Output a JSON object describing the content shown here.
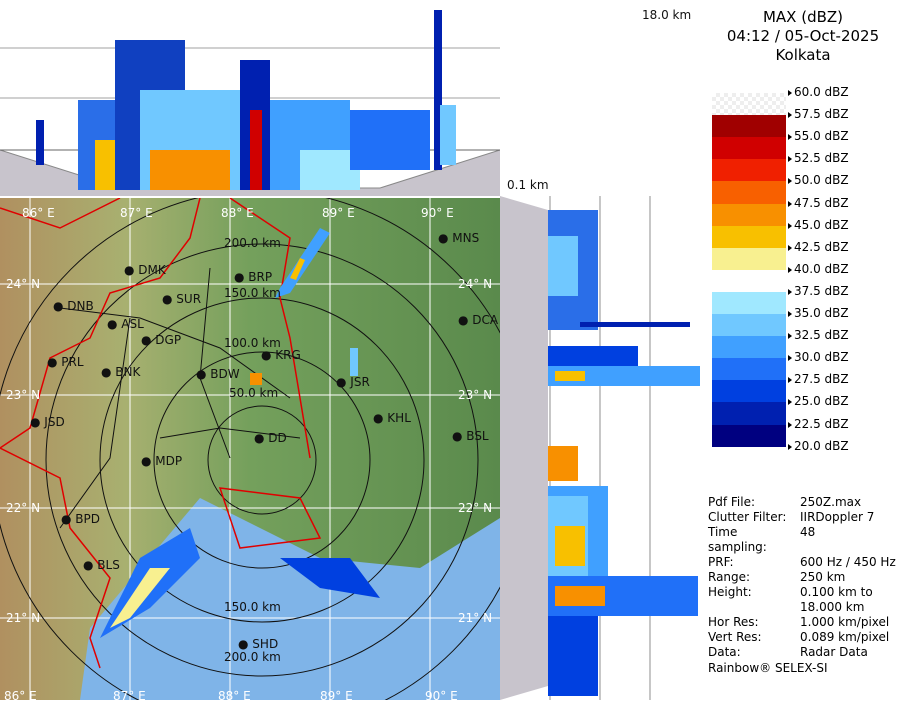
{
  "header": {
    "title": "MAX (dBZ)",
    "datetime": "04:12 / 05-Oct-2025",
    "station": "Kolkata"
  },
  "top_panel": {
    "height_top": "18.0 km",
    "height_bottom": "0.1 km"
  },
  "legend": {
    "labels": [
      "60.0 dBZ",
      "57.5 dBZ",
      "55.0 dBZ",
      "52.5 dBZ",
      "50.0 dBZ",
      "47.5 dBZ",
      "45.0 dBZ",
      "42.5 dBZ",
      "40.0 dBZ",
      "37.5 dBZ",
      "35.0 dBZ",
      "32.5 dBZ",
      "30.0 dBZ",
      "27.5 dBZ",
      "25.0 dBZ",
      "22.5 dBZ",
      "20.0 dBZ"
    ],
    "colors": [
      "#f4f4f4",
      "#a00000",
      "#d00000",
      "#f02000",
      "#f86000",
      "#f89000",
      "#f8c000",
      "#f8f090",
      "#ffffff",
      "#a0e8ff",
      "#70c8ff",
      "#40a0ff",
      "#2070f8",
      "#0040e0",
      "#0020b0",
      "#000080"
    ]
  },
  "info": [
    {
      "key": "Pdf File:",
      "value": "250Z.max"
    },
    {
      "key": "Clutter Filter:",
      "value": "IIRDoppler 7"
    },
    {
      "key": "Time sampling:",
      "value": "48"
    },
    {
      "key": "PRF:",
      "value": "600 Hz / 450 Hz"
    },
    {
      "key": "Range:",
      "value": "250 km"
    },
    {
      "key": "Height:",
      "value": "0.100 km to"
    },
    {
      "key": "",
      "value": "18.000 km"
    },
    {
      "key": "Hor Res:",
      "value": "1.000 km/pixel"
    },
    {
      "key": "Vert Res:",
      "value": "0.089 km/pixel"
    },
    {
      "key": "Data:",
      "value": "Radar Data"
    }
  ],
  "credit": "Rainbow® SELEX-SI",
  "map": {
    "lon_labels": [
      "86° E",
      "87° E",
      "88° E",
      "89° E",
      "90° E"
    ],
    "lat_labels": [
      "24° N",
      "23° N",
      "22° N",
      "21° N"
    ],
    "range_labels": [
      "50.0 km",
      "100.0 km",
      "150.0 km",
      "200.0 km"
    ],
    "range_labels_south": [
      "150.0 km",
      "200.0 km"
    ],
    "cities": [
      {
        "name": "MNS"
      },
      {
        "name": "DMK"
      },
      {
        "name": "BRP"
      },
      {
        "name": "SUR"
      },
      {
        "name": "DNB"
      },
      {
        "name": "ASL"
      },
      {
        "name": "DGP"
      },
      {
        "name": "DCA"
      },
      {
        "name": "KRG"
      },
      {
        "name": "PRL"
      },
      {
        "name": "BNK"
      },
      {
        "name": "BDW"
      },
      {
        "name": "JSR"
      },
      {
        "name": "KHL"
      },
      {
        "name": "JSD"
      },
      {
        "name": "DD"
      },
      {
        "name": "BSL"
      },
      {
        "name": "MDP"
      },
      {
        "name": "BPD"
      },
      {
        "name": "BLS"
      },
      {
        "name": "SHD"
      }
    ]
  }
}
